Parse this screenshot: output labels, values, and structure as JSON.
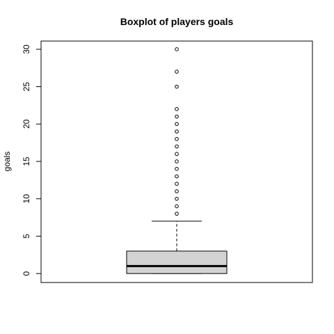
{
  "chart_data": {
    "type": "boxplot",
    "title": "Boxplot of players goals",
    "xlabel": "",
    "ylabel": "goals",
    "ylim": [
      -1.2,
      31.1
    ],
    "yticks": [
      0,
      5,
      10,
      15,
      20,
      25,
      30
    ],
    "grid": false,
    "legend": "none",
    "box": {
      "min": 0,
      "q1": 0,
      "median": 1,
      "q3": 3,
      "whisker_low": 0,
      "whisker_high": 7
    },
    "outliers": [
      8,
      9,
      10,
      11,
      12,
      13,
      14,
      15,
      16,
      17,
      18,
      19,
      20,
      21,
      22,
      25,
      27,
      30
    ],
    "colors": {
      "box_fill": "#d3d3d3",
      "line": "#000000",
      "background": "#ffffff"
    }
  }
}
